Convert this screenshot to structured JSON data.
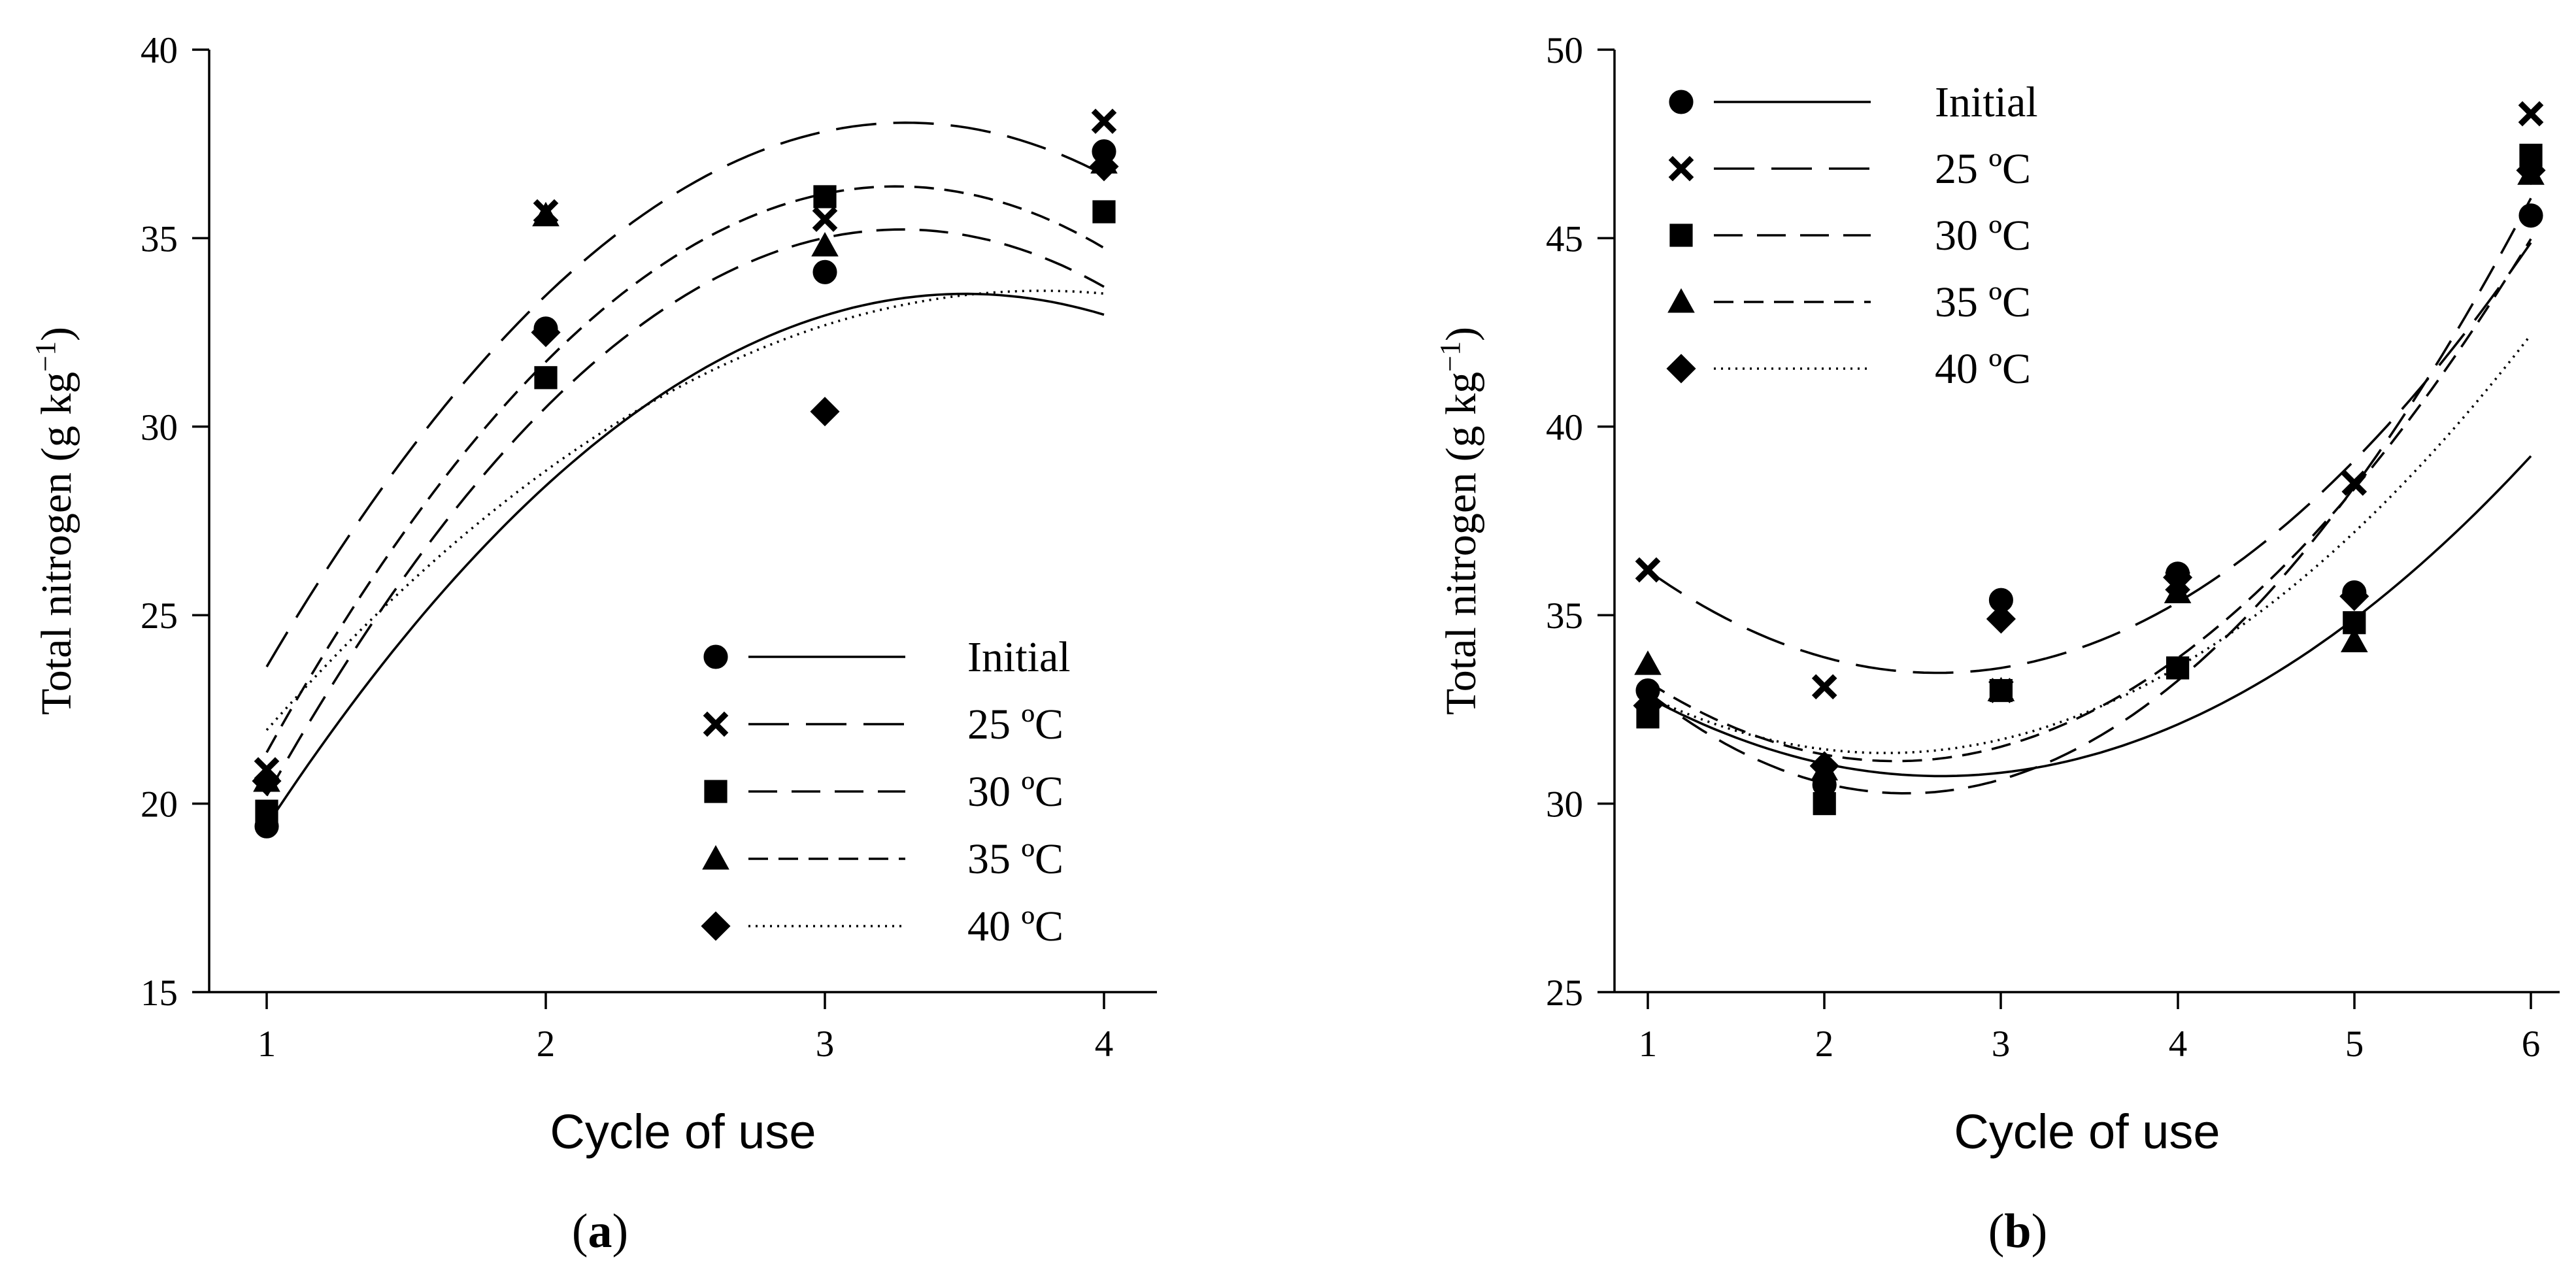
{
  "chart_data": [
    {
      "type": "scatter",
      "panel_label": "a",
      "xlabel": "Cycle of use",
      "ylabel": "Total nitrogen (g kg",
      "ylabel_unit_exponent": "−1",
      "ylabel_close": ")",
      "x_ticks": [
        "1",
        "2",
        "3",
        "4"
      ],
      "y_ticks": [
        "15",
        "20",
        "25",
        "30",
        "35",
        "40"
      ],
      "xlim": [
        0.8,
        4.2
      ],
      "ylim": [
        15,
        40
      ],
      "legend_position": "bottom-right",
      "series": [
        {
          "name": "Initial",
          "marker": "circle",
          "line": "solid",
          "x": [
            1,
            2,
            3,
            4
          ],
          "y": [
            19.4,
            32.6,
            34.1,
            37.3
          ],
          "fit": [
            -2.25,
            15.77,
            5.89
          ]
        },
        {
          "name": "25 ºC",
          "marker": "x",
          "line": "longdash",
          "x": [
            1,
            2,
            3,
            4
          ],
          "y": [
            20.9,
            35.7,
            35.5,
            38.1
          ],
          "fit": [
            -2.75,
            18.1,
            8.28
          ]
        },
        {
          "name": "30 ºC",
          "marker": "square",
          "line": "mediumdash",
          "x": [
            1,
            2,
            3,
            4
          ],
          "y": [
            19.8,
            31.3,
            36.1,
            35.7
          ],
          "fit": [
            -2.9,
            19.0,
            4.11
          ]
        },
        {
          "name": "35 ºC",
          "marker": "triangle",
          "line": "shortdash",
          "x": [
            1,
            2,
            3,
            4
          ],
          "y": [
            20.6,
            35.6,
            34.8,
            37.0
          ],
          "fit": [
            -2.95,
            19.21,
            5.1
          ]
        },
        {
          "name": "40 ºC",
          "marker": "diamond",
          "line": "dotted",
          "x": [
            1,
            2,
            3,
            4
          ],
          "y": [
            20.6,
            32.5,
            30.4,
            36.9
          ],
          "fit": [
            -1.51,
            11.41,
            12.05
          ]
        }
      ]
    },
    {
      "type": "scatter",
      "panel_label": "b",
      "xlabel": "Cycle of use",
      "ylabel": "Total nitrogen (g kg",
      "ylabel_unit_exponent": "−1",
      "ylabel_close": ")",
      "x_ticks": [
        "1",
        "2",
        "3",
        "4",
        "5",
        "6"
      ],
      "y_ticks": [
        "25",
        "30",
        "35",
        "40",
        "45",
        "50"
      ],
      "xlim": [
        0.7,
        6.2
      ],
      "ylim": [
        25,
        50
      ],
      "legend_position": "top-left",
      "series": [
        {
          "name": "Initial",
          "marker": "circle",
          "line": "solid",
          "x": [
            1,
            2,
            3,
            4,
            5,
            6
          ],
          "y": [
            33.0,
            30.5,
            35.4,
            36.1,
            35.6,
            45.6
          ],
          "fit": [
            0.76,
            -4.04,
            36.1
          ]
        },
        {
          "name": "25 ºC",
          "marker": "x",
          "line": "longdash",
          "x": [
            1,
            2,
            3,
            4,
            5,
            6
          ],
          "y": [
            36.2,
            33.1,
            33.0,
            35.9,
            38.5,
            48.3
          ],
          "fit": [
            1.01,
            -5.33,
            40.5
          ]
        },
        {
          "name": "30 ºC",
          "marker": "square",
          "line": "mediumdash",
          "x": [
            1,
            2,
            3,
            4,
            5,
            6
          ],
          "y": [
            32.3,
            30.0,
            33.0,
            33.6,
            34.8,
            47.2
          ],
          "fit": [
            1.26,
            -6.2,
            37.9
          ]
        },
        {
          "name": "35 ºC",
          "marker": "triangle",
          "line": "shortdash",
          "x": [
            1,
            2,
            3,
            4,
            5,
            6
          ],
          "y": [
            33.7,
            30.9,
            33.0,
            35.6,
            34.3,
            46.7
          ],
          "fit": [
            1.07,
            -5.14,
            37.3
          ]
        },
        {
          "name": "40 ºC",
          "marker": "diamond",
          "line": "dotted",
          "x": [
            1,
            2,
            3,
            4,
            5,
            6
          ],
          "y": [
            32.6,
            31.0,
            34.9,
            36.0,
            35.5,
            46.8
          ],
          "fit": [
            0.83,
            -3.89,
            35.9
          ]
        }
      ]
    }
  ]
}
